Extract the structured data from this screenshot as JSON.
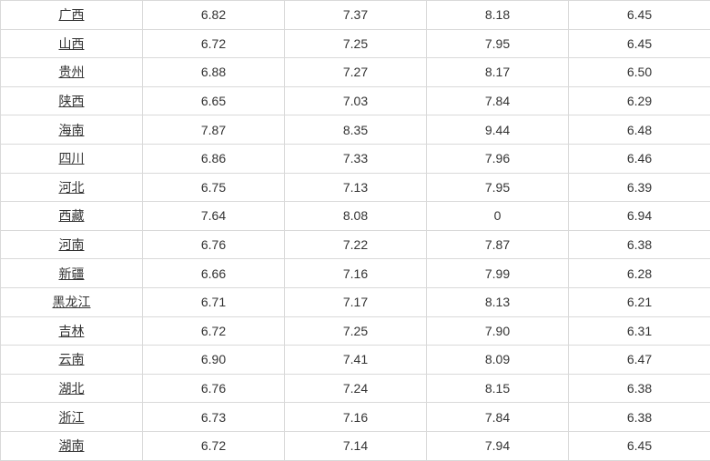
{
  "table": {
    "column_widths": [
      "20%",
      "20%",
      "20%",
      "20%",
      "20%"
    ],
    "cell_border_color": "#d9d9d9",
    "text_color": "#333333",
    "background_color": "#ffffff",
    "font_size": 14,
    "row_height": 31.6,
    "province_underline": true,
    "rows": [
      {
        "province": "广西",
        "v1": "6.82",
        "v2": "7.37",
        "v3": "8.18",
        "v4": "6.45"
      },
      {
        "province": "山西",
        "v1": "6.72",
        "v2": "7.25",
        "v3": "7.95",
        "v4": "6.45"
      },
      {
        "province": "贵州",
        "v1": "6.88",
        "v2": "7.27",
        "v3": "8.17",
        "v4": "6.50"
      },
      {
        "province": "陕西",
        "v1": "6.65",
        "v2": "7.03",
        "v3": "7.84",
        "v4": "6.29"
      },
      {
        "province": "海南",
        "v1": "7.87",
        "v2": "8.35",
        "v3": "9.44",
        "v4": "6.48"
      },
      {
        "province": "四川",
        "v1": "6.86",
        "v2": "7.33",
        "v3": "7.96",
        "v4": "6.46"
      },
      {
        "province": "河北",
        "v1": "6.75",
        "v2": "7.13",
        "v3": "7.95",
        "v4": "6.39"
      },
      {
        "province": "西藏",
        "v1": "7.64",
        "v2": "8.08",
        "v3": "0",
        "v4": "6.94"
      },
      {
        "province": "河南",
        "v1": "6.76",
        "v2": "7.22",
        "v3": "7.87",
        "v4": "6.38"
      },
      {
        "province": "新疆",
        "v1": "6.66",
        "v2": "7.16",
        "v3": "7.99",
        "v4": "6.28"
      },
      {
        "province": "黑龙江",
        "v1": "6.71",
        "v2": "7.17",
        "v3": "8.13",
        "v4": "6.21"
      },
      {
        "province": "吉林",
        "v1": "6.72",
        "v2": "7.25",
        "v3": "7.90",
        "v4": "6.31"
      },
      {
        "province": "云南",
        "v1": "6.90",
        "v2": "7.41",
        "v3": "8.09",
        "v4": "6.47"
      },
      {
        "province": "湖北",
        "v1": "6.76",
        "v2": "7.24",
        "v3": "8.15",
        "v4": "6.38"
      },
      {
        "province": "浙江",
        "v1": "6.73",
        "v2": "7.16",
        "v3": "7.84",
        "v4": "6.38"
      },
      {
        "province": "湖南",
        "v1": "6.72",
        "v2": "7.14",
        "v3": "7.94",
        "v4": "6.45"
      }
    ]
  }
}
